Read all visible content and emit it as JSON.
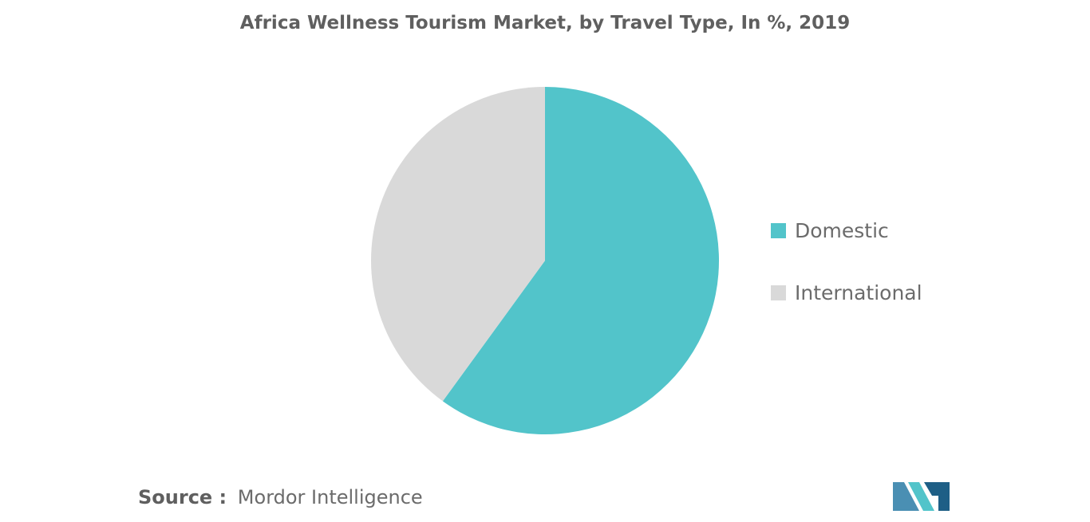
{
  "chart_data": {
    "type": "pie",
    "title": "Africa Wellness Tourism Market, by Travel Type, In %, 2019",
    "categories": [
      "Domestic",
      "International"
    ],
    "values": [
      60,
      40
    ],
    "colors": [
      "#52c4ca",
      "#d9d9d9"
    ],
    "start_angle": "12 o'clock",
    "direction": "clockwise",
    "legend_position": "right"
  },
  "source": {
    "label": "Source :",
    "value": "Mordor Intelligence"
  },
  "logo": {
    "colors": [
      "#4a8fb3",
      "#52c4ca",
      "#1e5f86"
    ]
  }
}
